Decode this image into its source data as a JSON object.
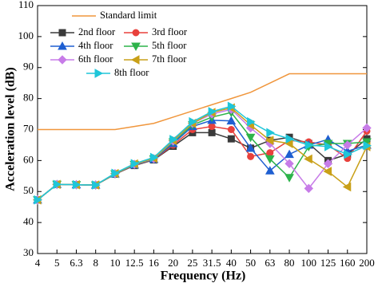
{
  "chart_data": {
    "type": "line",
    "x_label": "Frequency (Hz)",
    "y_label": "Acceleration level (dB)",
    "categories": [
      "4",
      "5",
      "6.3",
      "8",
      "10",
      "12.5",
      "16",
      "20",
      "25",
      "31.5",
      "40",
      "50",
      "63",
      "80",
      "100",
      "125",
      "160",
      "200"
    ],
    "ylim": [
      30,
      110
    ],
    "yticks": [
      30,
      40,
      50,
      60,
      70,
      80,
      90,
      100,
      110
    ],
    "series": [
      {
        "name": "Standard limit",
        "color": "#f0963c",
        "marker": "none",
        "values": [
          70,
          70,
          70,
          70,
          70,
          71,
          72,
          74,
          76,
          78,
          80,
          82,
          85,
          88,
          88,
          88,
          88,
          88
        ]
      },
      {
        "name": "2nd floor",
        "color": "#3a3a3a",
        "marker": "square",
        "values": [
          47.3,
          52.3,
          52.2,
          52.1,
          55.6,
          58.4,
          60.2,
          64.6,
          69,
          69,
          67,
          64,
          66.5,
          67.5,
          65.5,
          60,
          62,
          67
        ]
      },
      {
        "name": "3rd floor",
        "color": "#e8413c",
        "marker": "circle",
        "values": [
          47.3,
          52.3,
          52.2,
          52.1,
          55.6,
          58.5,
          60.3,
          65,
          70,
          71,
          70,
          61.3,
          62.5,
          66.5,
          66,
          65,
          60.7,
          69.5
        ]
      },
      {
        "name": "4th floor",
        "color": "#1f5fd1",
        "marker": "triangle-up",
        "values": [
          47.3,
          52.3,
          52.2,
          52.1,
          55.7,
          58.6,
          60.4,
          65.5,
          71,
          73,
          72.8,
          64,
          56.7,
          62,
          65,
          66.8,
          63,
          65
        ]
      },
      {
        "name": "5th floor",
        "color": "#2db34a",
        "marker": "triangle-down",
        "values": [
          47.3,
          52.3,
          52.2,
          52.1,
          55.7,
          58.7,
          60.5,
          66,
          71.5,
          74,
          75.5,
          67.5,
          60.5,
          54.5,
          64.5,
          65.5,
          65.5,
          66
        ]
      },
      {
        "name": "6th floor",
        "color": "#c77ce8",
        "marker": "diamond",
        "values": [
          47.3,
          52.3,
          52.2,
          52.1,
          55.8,
          58.8,
          60.6,
          66.3,
          72,
          75,
          76.5,
          70.5,
          65.5,
          59,
          51,
          59,
          65,
          70.5
        ]
      },
      {
        "name": "7th floor",
        "color": "#c9a018",
        "marker": "triangle-left",
        "values": [
          47.3,
          52.3,
          52.2,
          52.1,
          55.8,
          58.9,
          60.7,
          66.5,
          72,
          75.5,
          77,
          71.5,
          66.5,
          65.5,
          60.5,
          56.5,
          51.5,
          64.5
        ]
      },
      {
        "name": "8th floor",
        "color": "#1fc6d9",
        "marker": "triangle-right",
        "values": [
          47.3,
          52.3,
          52.2,
          52.1,
          55.9,
          59,
          61,
          66.8,
          72.5,
          75.8,
          77.5,
          72.5,
          69,
          67,
          65,
          64.5,
          62,
          64.8
        ]
      }
    ]
  }
}
